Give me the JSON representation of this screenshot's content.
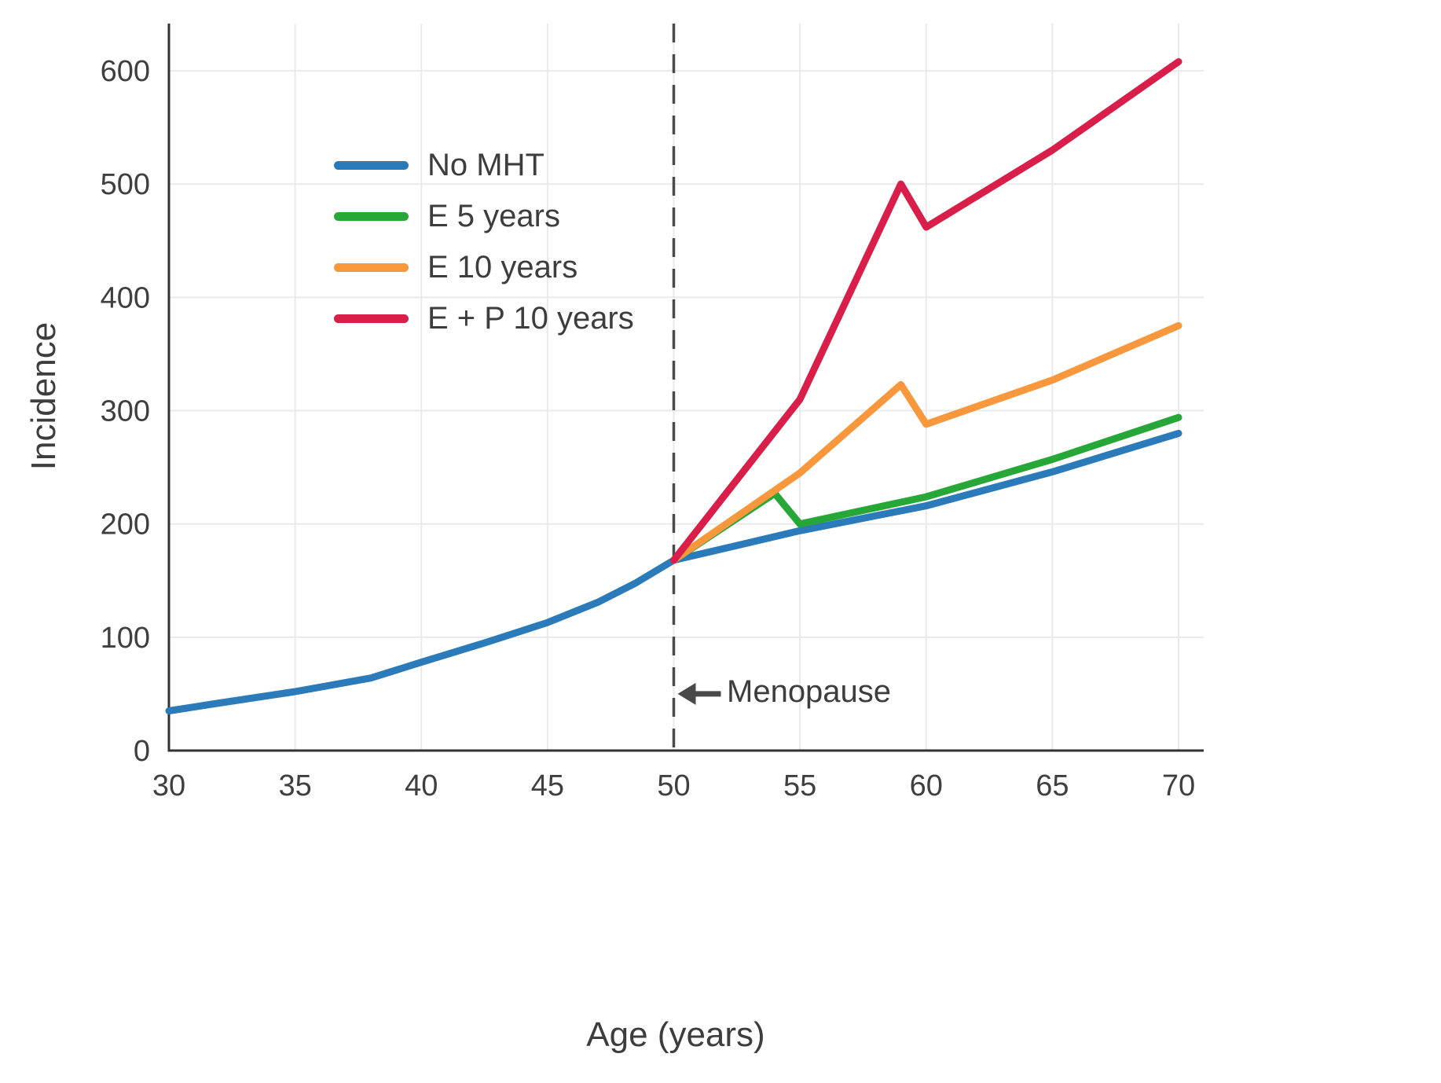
{
  "chart_data": {
    "type": "line",
    "title": "",
    "xlabel": "Age (years)",
    "ylabel": "Incidence",
    "xlim": [
      30,
      70
    ],
    "ylim": [
      0,
      650
    ],
    "xticks": [
      30,
      35,
      40,
      45,
      50,
      55,
      60,
      65,
      70
    ],
    "yticks": [
      0,
      100,
      200,
      300,
      400,
      500,
      600
    ],
    "grid": true,
    "legend_position": "upper-left",
    "series": [
      {
        "name": "No MHT",
        "color": "#2b7bba",
        "x": [
          30,
          32,
          35,
          38,
          40,
          42.5,
          45,
          47,
          48.5,
          50,
          52.5,
          55,
          60,
          65,
          70
        ],
        "y": [
          35,
          42,
          52,
          64,
          78,
          95,
          113,
          131,
          148,
          168,
          181,
          194,
          216,
          246,
          280
        ]
      },
      {
        "name": "E 5 years",
        "color": "#27a737",
        "x": [
          50,
          54,
          55,
          60,
          65,
          70
        ],
        "y": [
          168,
          227,
          200,
          224,
          257,
          294
        ]
      },
      {
        "name": "E 10 years",
        "color": "#f8973c",
        "x": [
          50,
          55,
          59,
          60,
          65,
          70
        ],
        "y": [
          168,
          245,
          323,
          288,
          327,
          375
        ]
      },
      {
        "name": "E + P 10 years",
        "color": "#d91e49",
        "x": [
          50,
          55,
          59,
          60,
          65,
          70
        ],
        "y": [
          168,
          310,
          500,
          462,
          530,
          608
        ]
      }
    ],
    "vline": {
      "x": 50,
      "style": "dashed",
      "color": "#4a4a4a"
    },
    "annotation": {
      "text": "Menopause",
      "arrow": "left",
      "x": 50,
      "y": 50
    },
    "axis_color": "#333333",
    "grid_color": "#eaeaea"
  }
}
